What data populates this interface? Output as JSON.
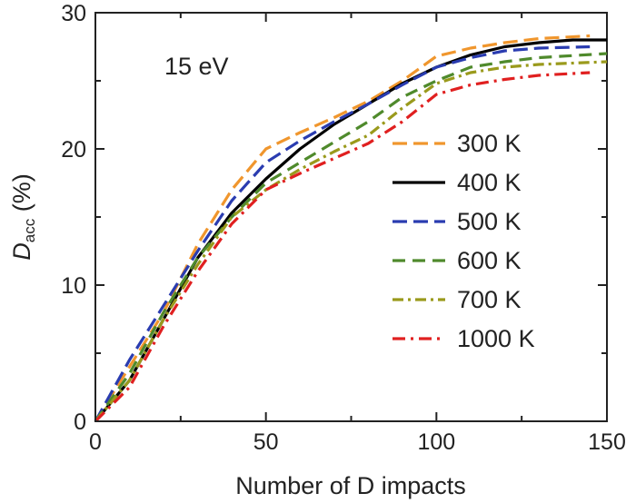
{
  "chart_data": {
    "type": "line",
    "annotation": "15 eV",
    "xlabel": "Number of D impacts",
    "ylabel": {
      "main": "D",
      "sub": "acc",
      "unit": " (%)"
    },
    "xlim": [
      0,
      150
    ],
    "ylim": [
      0,
      30
    ],
    "xticks": [
      0,
      50,
      100,
      150
    ],
    "yticks": [
      0,
      10,
      20,
      30
    ],
    "grid": false,
    "legend_position": "right",
    "series": [
      {
        "name": "300 K",
        "color": "#f0962d",
        "dash": "16,7",
        "x": [
          0,
          10,
          20,
          30,
          40,
          50,
          60,
          70,
          80,
          90,
          100,
          110,
          120,
          130,
          145
        ],
        "y": [
          0,
          4,
          8,
          13,
          17,
          20,
          21.2,
          22.3,
          23.5,
          25,
          26.8,
          27.4,
          27.8,
          28.1,
          28.3
        ]
      },
      {
        "name": "400 K",
        "color": "#000000",
        "dash": "",
        "x": [
          0,
          10,
          20,
          30,
          40,
          50,
          60,
          70,
          80,
          90,
          100,
          110,
          120,
          130,
          140,
          150
        ],
        "y": [
          0,
          3,
          7.5,
          12,
          15.3,
          17.8,
          20,
          21.8,
          23.3,
          24.8,
          26,
          26.9,
          27.5,
          27.8,
          28,
          28
        ]
      },
      {
        "name": "500 K",
        "color": "#2a3cb0",
        "dash": "16,7",
        "x": [
          0,
          10,
          20,
          30,
          40,
          50,
          60,
          70,
          80,
          90,
          100,
          110,
          120,
          130,
          145
        ],
        "y": [
          0,
          4.5,
          8.5,
          12.5,
          16.2,
          19,
          20.6,
          22,
          23.3,
          24.7,
          26,
          26.7,
          27.2,
          27.4,
          27.5
        ]
      },
      {
        "name": "600 K",
        "color": "#4f8a2c",
        "dash": "14,8",
        "x": [
          0,
          10,
          20,
          30,
          40,
          50,
          60,
          70,
          80,
          90,
          100,
          110,
          120,
          130,
          150
        ],
        "y": [
          0,
          3.5,
          8,
          12,
          15,
          17.5,
          19,
          20.5,
          22,
          23.8,
          25,
          26,
          26.4,
          26.7,
          27
        ]
      },
      {
        "name": "700 K",
        "color": "#9a9a1c",
        "dash": "12,5,3,5",
        "x": [
          0,
          10,
          20,
          30,
          40,
          50,
          60,
          70,
          80,
          90,
          100,
          110,
          120,
          130,
          150
        ],
        "y": [
          0,
          3,
          7.5,
          11.5,
          15,
          17,
          18.5,
          19.8,
          21,
          23,
          24.8,
          25.6,
          26,
          26.2,
          26.4
        ]
      },
      {
        "name": "1000 K",
        "color": "#e02020",
        "dash": "14,6,3,6",
        "x": [
          0,
          10,
          20,
          30,
          40,
          50,
          60,
          70,
          80,
          90,
          100,
          110,
          120,
          130,
          145
        ],
        "y": [
          0,
          2.5,
          7,
          11,
          14.5,
          17,
          18.2,
          19.3,
          20.4,
          22,
          24,
          24.7,
          25.1,
          25.4,
          25.6
        ]
      }
    ]
  }
}
